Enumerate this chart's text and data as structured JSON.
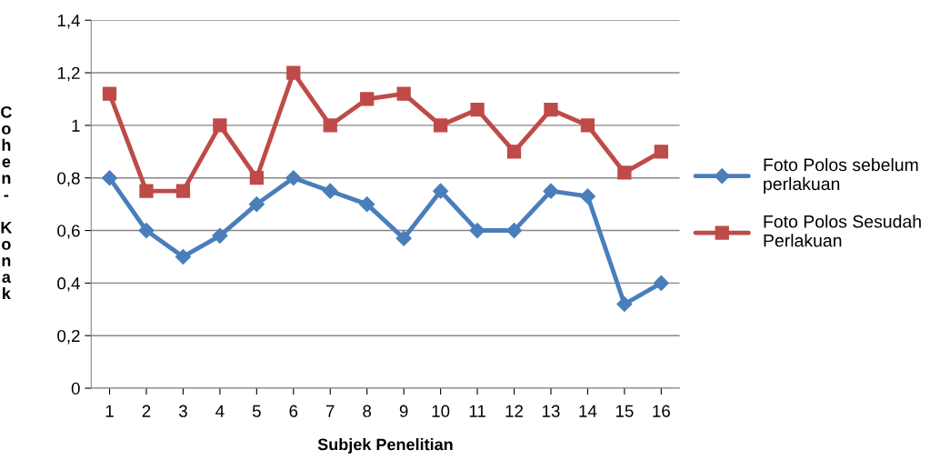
{
  "chart_data": {
    "type": "line",
    "xlabel": "Subjek Penelitian",
    "ylabel": "Cohen- Konak",
    "categories": [
      "1",
      "2",
      "3",
      "4",
      "5",
      "6",
      "7",
      "8",
      "9",
      "10",
      "11",
      "12",
      "13",
      "14",
      "15",
      "16"
    ],
    "series": [
      {
        "name": "Foto Polos sebelum perlakuan",
        "color": "#4a7ebb",
        "marker": "diamond",
        "values": [
          0.8,
          0.6,
          0.5,
          0.58,
          0.7,
          0.8,
          0.75,
          0.7,
          0.57,
          0.75,
          0.6,
          0.6,
          0.75,
          0.73,
          0.32,
          0.4
        ]
      },
      {
        "name": "Foto Polos Sesudah Perlakuan",
        "color": "#be4b48",
        "marker": "square",
        "values": [
          1.12,
          0.75,
          0.75,
          1.0,
          0.8,
          1.2,
          1.0,
          1.1,
          1.12,
          1.0,
          1.06,
          0.9,
          1.06,
          1.0,
          0.82,
          0.9
        ]
      }
    ],
    "ylim": [
      0,
      1.4
    ],
    "yticks": [
      0,
      {
        "value": 0.2,
        "label": "0,2"
      },
      {
        "value": 0.4,
        "label": "0,4"
      },
      {
        "value": 0.6,
        "label": "0,6"
      },
      {
        "value": 0.8,
        "label": "0,8"
      },
      1,
      {
        "value": 1.2,
        "label": "1,2"
      },
      {
        "value": 1.4,
        "label": "1,4"
      }
    ],
    "grid": "y",
    "legend": "right",
    "line_style": "solid"
  }
}
